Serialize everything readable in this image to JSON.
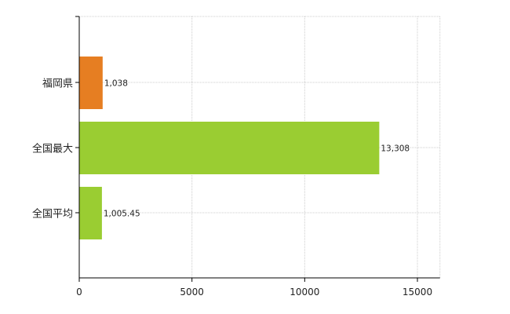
{
  "chart_data": {
    "type": "bar",
    "orientation": "horizontal",
    "categories": [
      "福岡県",
      "全国最大",
      "全国平均"
    ],
    "values": [
      1038,
      13308,
      1005.45
    ],
    "value_labels": [
      "1,038",
      "13,308",
      "1,005.45"
    ],
    "bar_colors": [
      "#e67e22",
      "#9acd32",
      "#9acd32"
    ],
    "xlim": [
      0,
      16000
    ],
    "xticks": [
      0,
      5000,
      10000,
      15000
    ],
    "xtick_labels": [
      "0",
      "5000",
      "10000",
      "15000"
    ],
    "grid": true,
    "title": "",
    "xlabel": "",
    "ylabel": ""
  }
}
